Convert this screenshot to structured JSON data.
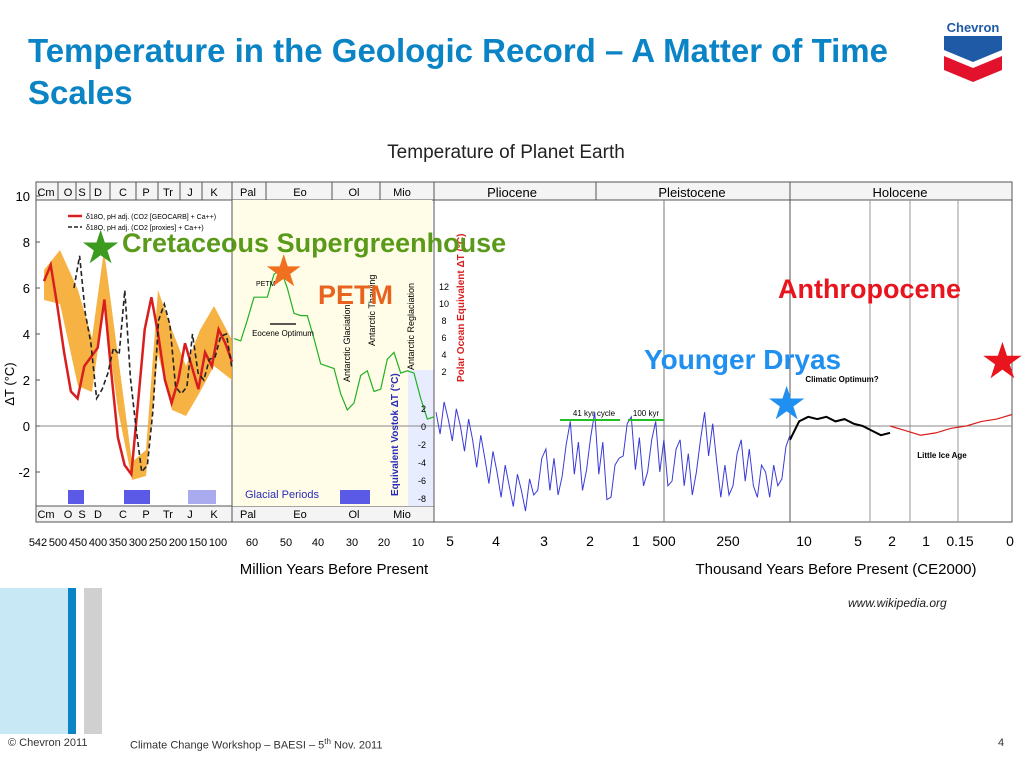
{
  "slide": {
    "title": "Temperature in the Geologic Record – A Matter of Time Scales",
    "logo_text": "Chevron",
    "source": "www.wikipedia.org",
    "footer_copyright": "© Chevron 2011",
    "footer_event_prefix": "Climate Change Workshop – BAESI – 5",
    "footer_event_sup": "th",
    "footer_event_suffix": " Nov. 2011",
    "page_number": "4"
  },
  "annotations": {
    "cretaceous": "Cretaceous Supergreenhouse",
    "petm": "PETM",
    "anthropocene": "Anthropocene",
    "younger_dryas": "Younger Dryas"
  },
  "colors": {
    "title": "#0b84c6",
    "cretaceous_star": "#3c9a1e",
    "petm_star": "#f07020",
    "younger_dryas_star": "#1f8ff0",
    "anthropocene_star": "#e8141e",
    "paleo_curve": "#d81e1e",
    "paleo_band": "#f5a623",
    "cenozoic_curve": "#22b022",
    "vostok_curve": "#3a3ad8",
    "holocene_curve": "#000000",
    "glacial_bar": "#5a5ae6"
  },
  "chart_data": {
    "type": "line",
    "title": "Temperature of Planet Earth",
    "ylabel": "ΔT (°C)",
    "ylim": [
      -4,
      10
    ],
    "y_ticks": [
      10,
      8,
      6,
      4,
      2,
      0,
      -2
    ],
    "grid": false,
    "panels": [
      {
        "x_label": "Million Years Before Present",
        "x_ticks": [
          "542",
          "500",
          "450",
          "400",
          "350",
          "300",
          "250",
          "200",
          "150",
          "100",
          "60",
          "50",
          "40",
          "30",
          "20",
          "10",
          "5",
          "4",
          "3",
          "2",
          "1",
          "500"
        ],
        "periods_top": [
          "Cm",
          "O",
          "S",
          "D",
          "C",
          "P",
          "Tr",
          "J",
          "K",
          "Pal",
          "Eo",
          "Ol",
          "Mio",
          "Pliocene"
        ],
        "periods_bottom": [
          "Cm",
          "O",
          "S",
          "D",
          "C",
          "P",
          "Tr",
          "J",
          "K",
          "Pal",
          "Eo",
          "Ol",
          "Mio"
        ]
      },
      {
        "x_label": "Thousand Years Before Present (CE2000)",
        "x_ticks": [
          "250",
          "10",
          "5",
          "2",
          "1",
          "0.15",
          "0"
        ],
        "periods_top": [
          "Pleistocene",
          "Holocene"
        ]
      }
    ],
    "legend": [
      "δ18O, pH adj. (CO2 [GEOCARB] + Ca++)",
      "δ18O, pH adj. (CO2 [proxies] + Ca++)"
    ],
    "inner_labels": {
      "petm": "PETM",
      "eocene_optimum": "Eocene Optimum",
      "antarctic_glaciation": "Antarctic Glaciation",
      "antarctic_thawing": "Antarctic Thawing",
      "antarctic_reglaciation": "Antarctic Reglaciation",
      "polar_ocean_axis": "Polar Ocean Equivalent ΔT (°C)",
      "vostok_axis": "Equivalent Vostok ΔT (°C)",
      "cycle_41": "41 kyr cycle",
      "cycle_100": "100 kyr",
      "climatic_optimum": "Climatic Optimum?",
      "little_ice_age": "Little Ice Age",
      "glacial_periods": "Glacial Periods"
    },
    "polar_ticks": [
      "12",
      "10",
      "8",
      "6",
      "4",
      "2"
    ],
    "vostok_ticks": [
      "2",
      "0",
      "-2",
      "-4",
      "-6",
      "-8"
    ],
    "series": [
      {
        "name": "",
        "segment": "paleozoic-mesozoic",
        "values": [
          6.3,
          7.0,
          5.2,
          3.2,
          1.5,
          1.2,
          2.6,
          3.0,
          3.4,
          5.5,
          2.4,
          -0.5,
          -1.7,
          -2.1,
          1.0,
          4.2,
          5.6,
          4.0,
          2.0,
          1.0,
          2.0,
          3.6,
          2.6,
          1.6,
          3.2,
          2.6,
          4.2,
          3.6,
          2.8
        ]
      },
      {
        "name": "",
        "segment": "cenozoic",
        "values": [
          3.8,
          4.6,
          5.6,
          6.6,
          6.0,
          4.8,
          3.8,
          2.6,
          1.4,
          1.0,
          2.4,
          1.6,
          3.2,
          2.4,
          1.2,
          0.4
        ]
      },
      {
        "name": "",
        "segment": "vostok",
        "values": [
          0.6,
          0.3,
          0.0,
          -0.6,
          -1.4,
          -2.0,
          -2.6,
          -2.8,
          -3.0,
          -1.0,
          -3.0,
          0.2,
          -2.8,
          0.6,
          -3.2,
          -1.4,
          0.4,
          -2.6,
          0.2,
          -2.6,
          -0.6,
          -3.0,
          0.6,
          -1.6,
          -3.0,
          -0.6,
          -2.6,
          -2.0,
          -2.6,
          -0.4
        ]
      },
      {
        "name": "",
        "segment": "holocene",
        "values": [
          -0.6,
          0.2,
          0.4,
          0.3,
          0.4,
          0.2,
          0.3,
          0.1,
          0.0,
          -0.2,
          -0.4,
          -0.3,
          -0.1,
          0.0,
          0.2,
          0.3,
          0.5
        ]
      }
    ],
    "glacial_periods": [
      {
        "from": 450,
        "to": 420
      },
      {
        "from": 330,
        "to": 260
      },
      {
        "from": 170,
        "to": 130
      },
      {
        "from": 35,
        "to": 0
      }
    ]
  }
}
